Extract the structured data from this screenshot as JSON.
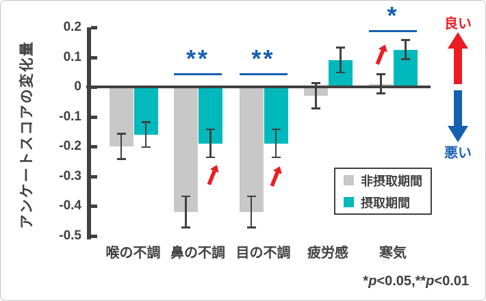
{
  "figure": {
    "background": "#ffffff",
    "border_color": "#c4c4c4"
  },
  "colors": {
    "bar_non_intake_gray": "#c8c8c8",
    "bar_intake_teal": "#00b9bc",
    "axis_dark_gray": "#404040",
    "significance_blue": "#1660b2",
    "improvement_arrow_red": "#ec1c24",
    "good_red": "#ec1c24",
    "bad_blue": "#1660b2"
  },
  "chart_data": {
    "type": "bar",
    "title": "",
    "xlabel": "",
    "ylabel": "アンケートスコアの変化量",
    "categories": [
      "喉の不調",
      "鼻の不調",
      "目の不調",
      "疲労感",
      "寒気"
    ],
    "series": [
      {
        "name": "非摂取期間",
        "color": "#c8c8c8",
        "values": [
          -0.2,
          -0.42,
          -0.42,
          -0.03,
          0.01
        ],
        "errors": [
          0.045,
          0.055,
          0.055,
          0.045,
          0.035
        ]
      },
      {
        "name": "摂取期間",
        "color": "#00b9bc",
        "values": [
          -0.16,
          -0.19,
          -0.19,
          0.09,
          0.125
        ],
        "errors": [
          0.045,
          0.05,
          0.05,
          0.045,
          0.035
        ]
      }
    ],
    "ylim": [
      -0.5,
      0.2
    ],
    "yticks": [
      {
        "label": "0.2",
        "value": 0.2
      },
      {
        "label": "0.1",
        "value": 0.1
      },
      {
        "label": "0",
        "value": 0
      },
      {
        "label": "-0.1",
        "value": -0.1
      },
      {
        "label": "-0.2",
        "value": -0.2
      },
      {
        "label": "-0.3",
        "value": -0.3
      },
      {
        "label": "-0.4",
        "value": -0.4
      },
      {
        "label": "-0.5",
        "value": -0.5
      }
    ],
    "grid": false,
    "legend_position": "inside-right-middle",
    "error_bars": true,
    "significance": [
      {
        "category": "鼻の不調",
        "category_index": 1,
        "marker": "**",
        "bracket_y": 0.045,
        "improvement_arrow": true
      },
      {
        "category": "目の不調",
        "category_index": 2,
        "marker": "**",
        "bracket_y": 0.045,
        "improvement_arrow": true
      },
      {
        "category": "寒気",
        "category_index": 4,
        "marker": "*",
        "bracket_y": 0.19,
        "improvement_arrow": true
      }
    ],
    "direction_indicator": {
      "good": "良い",
      "bad": "悪い"
    }
  },
  "footnote": {
    "segments": [
      {
        "text": "*"
      },
      {
        "text": "p",
        "italic": true
      },
      {
        "text": "<0.05,**"
      },
      {
        "text": "p",
        "italic": true
      },
      {
        "text": "<0.01"
      }
    ]
  }
}
